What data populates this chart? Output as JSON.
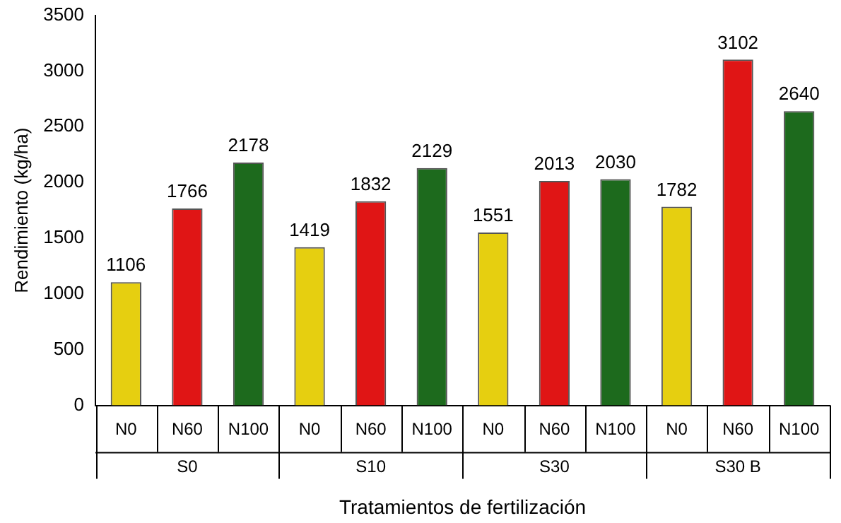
{
  "chart_data": {
    "type": "bar",
    "xlabel": "Tratamientos de fertilización",
    "ylabel": "Rendimiento (kg/ha)",
    "categories": [
      "N0",
      "N60",
      "N100",
      "N0",
      "N60",
      "N100",
      "N0",
      "N60",
      "N100",
      "N0",
      "N60",
      "N100"
    ],
    "values": [
      1106,
      1766,
      2178,
      1419,
      1832,
      2129,
      1551,
      2013,
      2030,
      1782,
      3102,
      2640
    ],
    "colors": [
      "#e6cf10",
      "#e01515",
      "#1d6a1d",
      "#e6cf10",
      "#e01515",
      "#1d6a1d",
      "#e6cf10",
      "#e01515",
      "#1d6a1d",
      "#e6cf10",
      "#e01515",
      "#1d6a1d"
    ],
    "ylim": [
      0,
      3500
    ],
    "yticks": [
      0,
      500,
      1000,
      1500,
      2000,
      2500,
      3000,
      3500
    ],
    "grid": false,
    "legend": false,
    "data_labels": true,
    "annotations": [
      "S0",
      "S10",
      "S30",
      "S30 B"
    ]
  }
}
